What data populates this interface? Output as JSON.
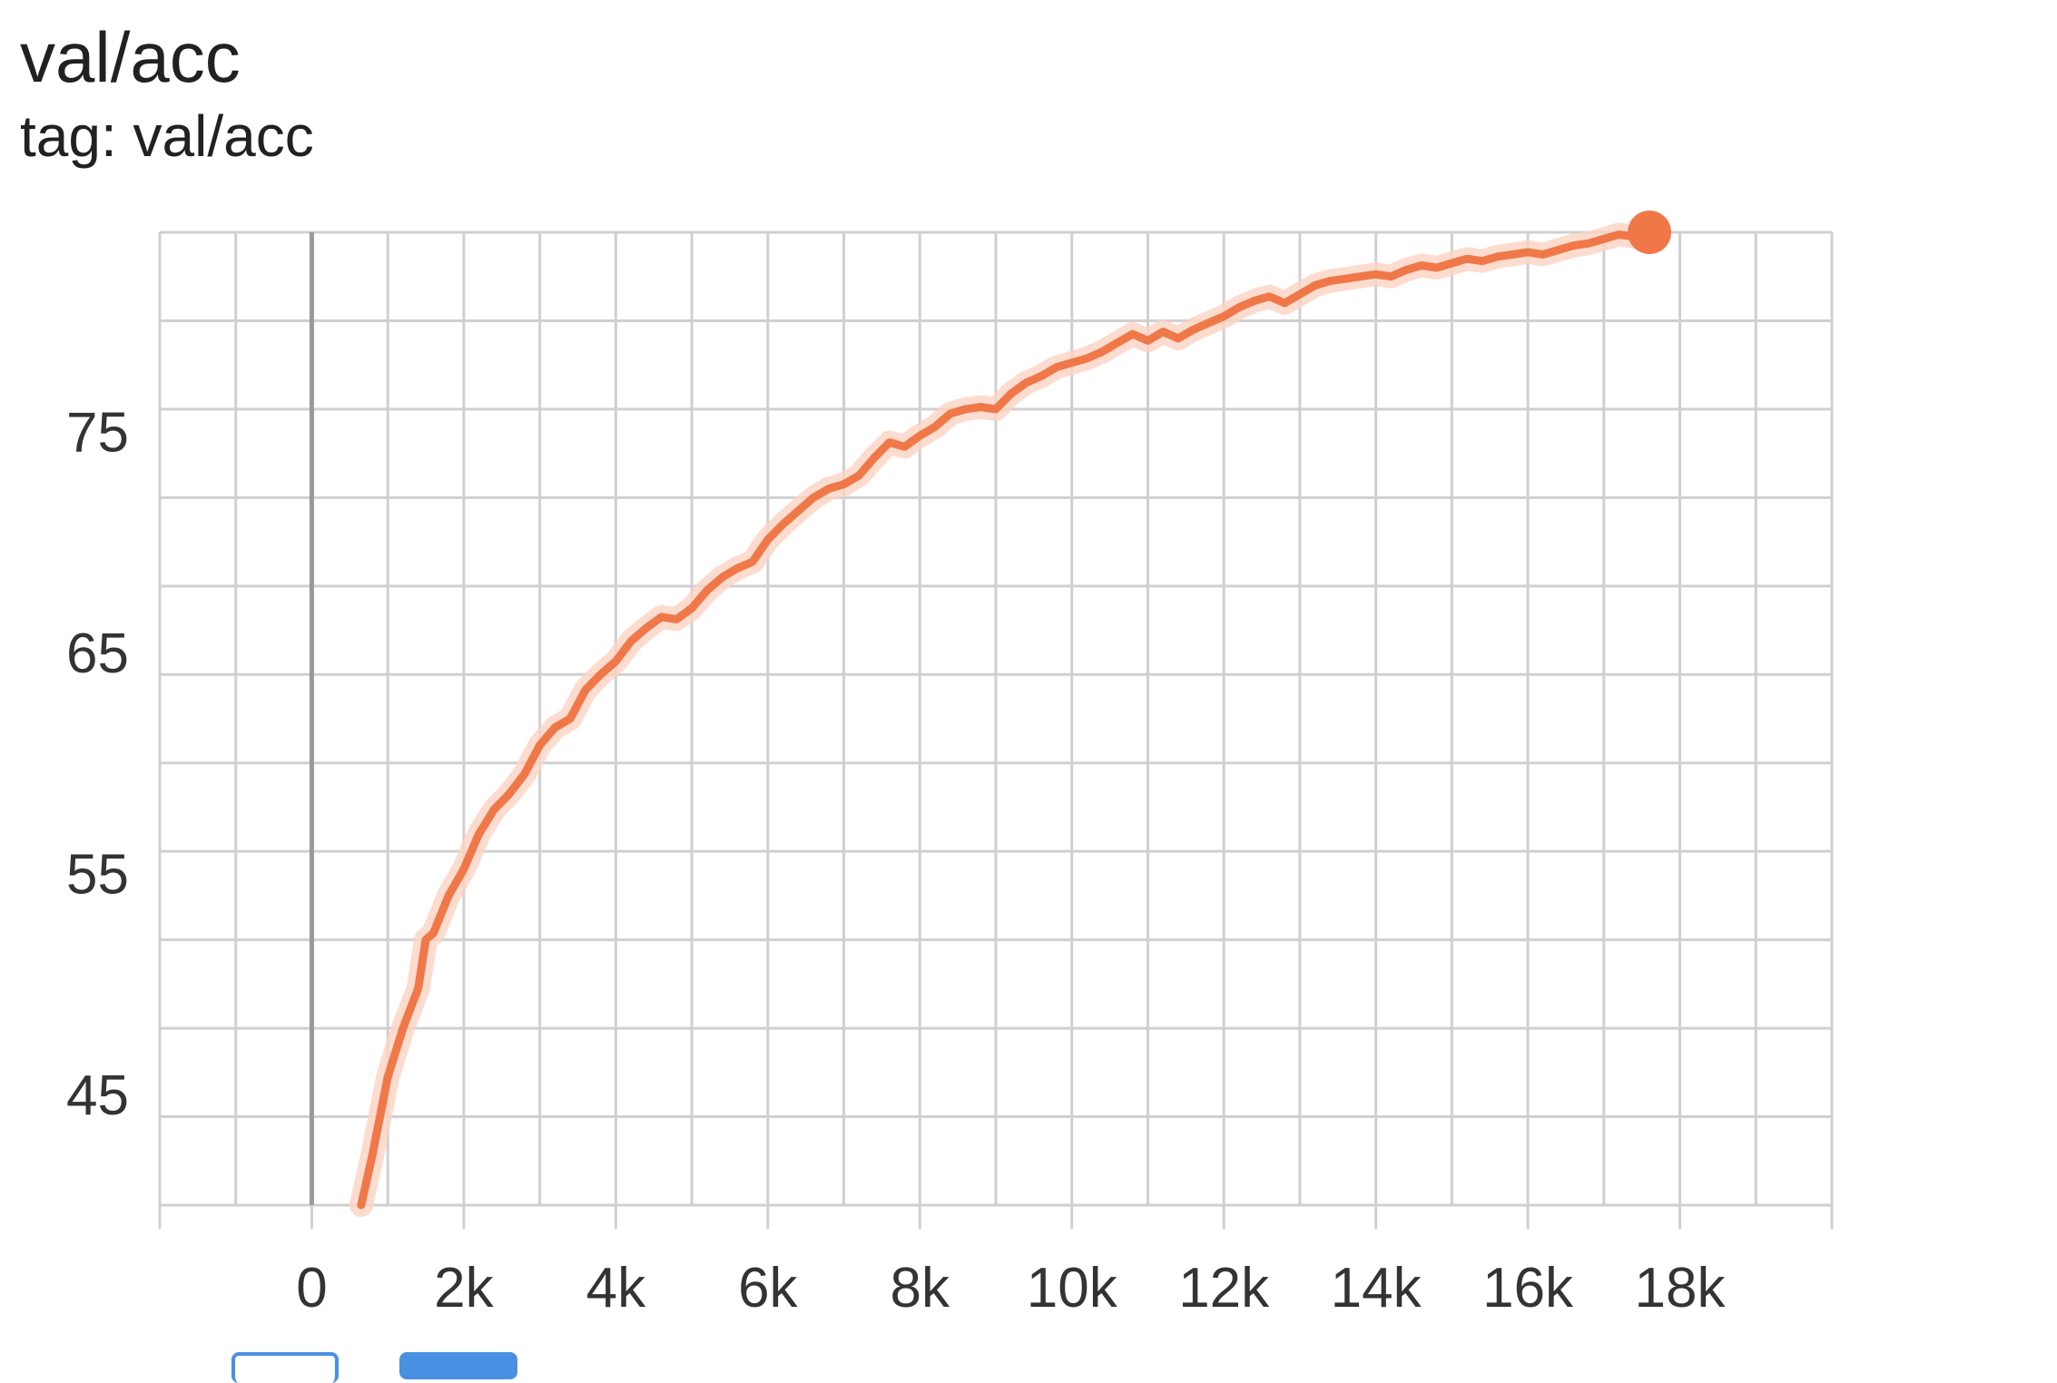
{
  "header": {
    "title": "val/acc",
    "subtitle": "tag: val/acc"
  },
  "colors": {
    "series": "#f07848",
    "series_band": "#fbd3c3",
    "grid": "#d0d0d0",
    "zero_axis": "#999999",
    "toolbar_button": "#4a90e2"
  },
  "chart_data": {
    "type": "line",
    "title": "val/acc",
    "subtitle": "tag: val/acc",
    "xlabel": "",
    "ylabel": "",
    "xlim": [
      -2000,
      20000
    ],
    "ylim": [
      40,
      84
    ],
    "x_ticks": [
      0,
      2000,
      4000,
      6000,
      8000,
      10000,
      12000,
      14000,
      16000,
      18000
    ],
    "x_tick_labels": [
      "0",
      "2k",
      "4k",
      "6k",
      "8k",
      "10k",
      "12k",
      "14k",
      "16k",
      "18k"
    ],
    "y_ticks": [
      45,
      55,
      65,
      75
    ],
    "y_tick_labels": [
      "45",
      "55",
      "65",
      "75"
    ],
    "grid": true,
    "legend": "none",
    "series": [
      {
        "x": [
          650,
          800,
          1000,
          1200,
          1400,
          1500,
          1600,
          1800,
          2000,
          2200,
          2400,
          2600,
          2800,
          3000,
          3200,
          3400,
          3600,
          3800,
          4000,
          4200,
          4400,
          4600,
          4800,
          5000,
          5200,
          5400,
          5600,
          5800,
          6000,
          6200,
          6400,
          6600,
          6800,
          7000,
          7200,
          7400,
          7600,
          7800,
          8000,
          8200,
          8400,
          8600,
          8800,
          9000,
          9200,
          9400,
          9600,
          9800,
          10000,
          10200,
          10400,
          10600,
          10800,
          11000,
          11200,
          11400,
          11600,
          11800,
          12000,
          12200,
          12400,
          12600,
          12800,
          13000,
          13200,
          13400,
          13600,
          13800,
          14000,
          14200,
          14400,
          14600,
          14800,
          15000,
          15200,
          15400,
          15600,
          15800,
          16000,
          16200,
          16400,
          16600,
          16800,
          17000,
          17200,
          17400,
          17600
        ],
        "y": [
          40.0,
          42.3,
          45.8,
          48.0,
          49.8,
          52.0,
          52.3,
          54.0,
          55.2,
          56.8,
          57.9,
          58.6,
          59.5,
          60.8,
          61.6,
          62.0,
          63.3,
          64.0,
          64.6,
          65.5,
          66.1,
          66.6,
          66.5,
          67.0,
          67.8,
          68.4,
          68.8,
          69.1,
          70.1,
          70.8,
          71.4,
          72.0,
          72.4,
          72.6,
          73.0,
          73.8,
          74.5,
          74.3,
          74.8,
          75.2,
          75.8,
          76.0,
          76.1,
          76.0,
          76.7,
          77.2,
          77.5,
          77.9,
          78.1,
          78.3,
          78.6,
          79.0,
          79.4,
          79.1,
          79.5,
          79.2,
          79.6,
          79.9,
          80.2,
          80.6,
          80.9,
          81.1,
          80.8,
          81.2,
          81.6,
          81.8,
          81.9,
          82.0,
          82.1,
          82.0,
          82.3,
          82.5,
          82.4,
          82.6,
          82.8,
          82.7,
          82.9,
          83.0,
          83.1,
          83.0,
          83.2,
          83.4,
          83.5,
          83.7,
          83.9,
          83.8,
          84.0
        ]
      }
    ]
  }
}
